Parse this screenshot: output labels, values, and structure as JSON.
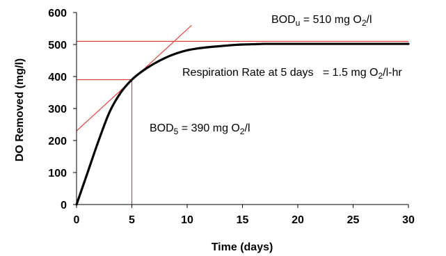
{
  "chart_data": {
    "type": "line",
    "title": "",
    "xlabel": "Time (days)",
    "ylabel": "DO Removed  (mg/l)",
    "xlim": [
      0,
      30
    ],
    "ylim": [
      0,
      600
    ],
    "xticks": [
      "0",
      "5",
      "10",
      "15",
      "20",
      "25",
      "30"
    ],
    "yticks": [
      "0",
      "100",
      "200",
      "300",
      "400",
      "500",
      "600"
    ],
    "grid": false,
    "legend": "none",
    "series": [
      {
        "x": [
          0,
          1,
          2,
          3,
          4,
          5,
          6,
          7,
          8,
          9,
          10,
          11,
          12,
          13,
          14,
          15,
          16,
          17,
          18,
          20,
          22,
          24,
          26,
          28,
          30
        ],
        "y": [
          0,
          100,
          200,
          290,
          350,
          390,
          418,
          440,
          458,
          472,
          482,
          488,
          492,
          495,
          498,
          500,
          501,
          502,
          502,
          502,
          502,
          502,
          502,
          502,
          502
        ],
        "color": "#000000"
      }
    ],
    "reference_lines": [
      {
        "kind": "horizontal",
        "y": 510,
        "x_from": 0,
        "x_to": 30,
        "color": "#e8302a"
      },
      {
        "kind": "horizontal",
        "y": 390,
        "x_from": 0,
        "x_to": 5,
        "color": "#e8302a"
      },
      {
        "kind": "vertical",
        "x": 5,
        "y_from": 0,
        "y_to": 390,
        "color": "#e8302a"
      },
      {
        "kind": "tangent",
        "x1": 0,
        "y1": 230,
        "x2": 10.4,
        "y2": 560,
        "color": "#e8302a"
      }
    ],
    "annotations": [
      {
        "id": "bodu",
        "base": "BOD",
        "sub": "u",
        "rest": " = 510 mg O",
        "sub2": "2",
        "tail": "/l"
      },
      {
        "id": "rate",
        "base": "Respiration Rate at 5 days   = 1.5 mg O",
        "sub": "2",
        "rest": "/l-hr"
      },
      {
        "id": "bod5",
        "base": "BOD",
        "sub": "5",
        "rest": " = 390 mg O",
        "sub2": "2",
        "tail": "/l"
      }
    ]
  }
}
